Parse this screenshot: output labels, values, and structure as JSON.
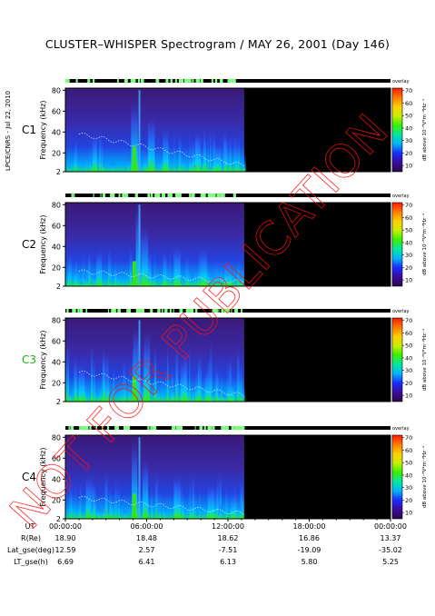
{
  "title": "CLUSTER–WHISPER Spectrogram / MAY 26, 2001 (Day 146)",
  "side_credit": "LPCE/CNRS - Jul 22, 2010",
  "watermark": "NOT FOR PUBLICATION",
  "status_label": "overlay",
  "colors": {
    "c3_label": "#18b418",
    "watermark": "#ff1010"
  },
  "chart_data": {
    "type": "heatmap",
    "ylabel": "Frequency (kHz)",
    "yticks": [
      2,
      20,
      40,
      60,
      80
    ],
    "ylim": [
      2,
      82
    ],
    "colorbar": {
      "label": "dB above 10⁻⁸V²m⁻²Hz⁻¹",
      "ticks": [
        10,
        20,
        30,
        40,
        50,
        60,
        70
      ],
      "range": [
        5,
        72
      ],
      "colors": [
        "#2a0a4a",
        "#3a0aa0",
        "#1a2aff",
        "#00b4ff",
        "#00e8a0",
        "#38f000",
        "#c8f000",
        "#ffd000",
        "#ff7a00",
        "#ff1a00"
      ]
    },
    "xaxis": {
      "label": "UT",
      "ticks": [
        "00:00:00",
        "06:00:00",
        "12:00:00",
        "18:00:00",
        "00:00:00"
      ],
      "data_end_hours": 13.2
    },
    "panels": [
      {
        "name": "C1",
        "bursts": [
          {
            "t": 2.0,
            "f": 40,
            "w": 0.35
          },
          {
            "t": 4.85,
            "f": 70,
            "w": 0.5
          },
          {
            "t": 6.1,
            "f": 55,
            "w": 0.5
          },
          {
            "t": 7.2,
            "f": 45,
            "w": 0.4
          },
          {
            "t": 9.6,
            "f": 40,
            "w": 0.4
          },
          {
            "t": 11.0,
            "f": 30,
            "w": 0.5
          }
        ],
        "line_start": 38,
        "line_end": 8,
        "noise": 0.55
      },
      {
        "name": "C2",
        "bursts": [
          {
            "t": 2.3,
            "f": 38,
            "w": 0.4
          },
          {
            "t": 5.2,
            "f": 82,
            "w": 0.35
          },
          {
            "t": 5.6,
            "f": 60,
            "w": 0.5
          },
          {
            "t": 8.0,
            "f": 42,
            "w": 0.5
          },
          {
            "t": 10.0,
            "f": 40,
            "w": 0.45
          },
          {
            "t": 11.8,
            "f": 28,
            "w": 0.5
          }
        ],
        "line_start": 16,
        "line_end": 6,
        "noise": 0.5
      },
      {
        "name": "C3",
        "bursts": [
          {
            "t": 1.0,
            "f": 38,
            "w": 0.4
          },
          {
            "t": 5.0,
            "f": 75,
            "w": 0.4
          },
          {
            "t": 5.8,
            "f": 70,
            "w": 0.45
          },
          {
            "t": 8.5,
            "f": 42,
            "w": 0.5
          },
          {
            "t": 10.3,
            "f": 35,
            "w": 0.45
          },
          {
            "t": 12.0,
            "f": 25,
            "w": 0.45
          }
        ],
        "line_start": 30,
        "line_end": 8,
        "noise": 0.75
      },
      {
        "name": "C4",
        "bursts": [
          {
            "t": 1.5,
            "f": 45,
            "w": 0.35
          },
          {
            "t": 4.9,
            "f": 78,
            "w": 0.4
          },
          {
            "t": 5.7,
            "f": 60,
            "w": 0.4
          },
          {
            "t": 8.0,
            "f": 45,
            "w": 0.5
          },
          {
            "t": 10.5,
            "f": 35,
            "w": 0.5
          },
          {
            "t": 12.2,
            "f": 28,
            "w": 0.45
          }
        ],
        "line_start": 22,
        "line_end": 7,
        "noise": 0.6
      }
    ],
    "ephemeris": [
      {
        "label": "R(Re)",
        "values": [
          "18.90",
          "18.48",
          "18.62",
          "16.86",
          "13.37"
        ]
      },
      {
        "label": "Lat_gse(deg)",
        "values": [
          "12.59",
          "2.57",
          "-7.51",
          "-19.09",
          "-35.02"
        ]
      },
      {
        "label": "LT_gse(h)",
        "values": [
          "6.69",
          "6.41",
          "6.13",
          "5.80",
          "5.25"
        ]
      }
    ]
  }
}
